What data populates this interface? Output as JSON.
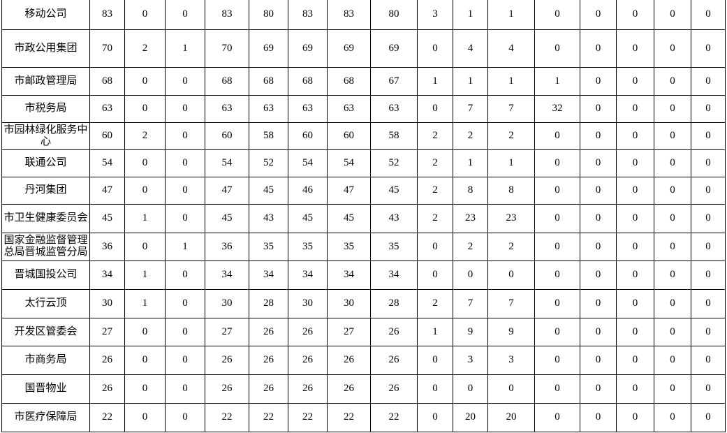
{
  "table": {
    "rows": [
      [
        "移动公司",
        83,
        0,
        0,
        83,
        80,
        83,
        83,
        80,
        3,
        1,
        1,
        0,
        0,
        0,
        0,
        0
      ],
      [
        "市政公用集团",
        70,
        2,
        1,
        70,
        69,
        69,
        69,
        69,
        0,
        4,
        4,
        0,
        0,
        0,
        0,
        0
      ],
      [
        "市邮政管理局",
        68,
        0,
        0,
        68,
        68,
        68,
        68,
        67,
        1,
        1,
        1,
        1,
        0,
        0,
        0,
        0
      ],
      [
        "市税务局",
        63,
        0,
        0,
        63,
        63,
        63,
        63,
        63,
        0,
        7,
        7,
        32,
        0,
        0,
        0,
        0
      ],
      [
        "市园林绿化服务中心",
        60,
        2,
        0,
        60,
        58,
        60,
        60,
        58,
        2,
        2,
        2,
        0,
        0,
        0,
        0,
        0
      ],
      [
        "联通公司",
        54,
        0,
        0,
        54,
        52,
        54,
        54,
        52,
        2,
        1,
        1,
        0,
        0,
        0,
        0,
        0
      ],
      [
        "丹河集团",
        47,
        0,
        0,
        47,
        45,
        46,
        47,
        45,
        2,
        8,
        8,
        0,
        0,
        0,
        0,
        0
      ],
      [
        "市卫生健康委员会",
        45,
        1,
        0,
        45,
        43,
        45,
        45,
        43,
        2,
        23,
        23,
        0,
        0,
        0,
        0,
        0
      ],
      [
        "国家金融监督管理总局晋城监管分局",
        36,
        0,
        1,
        36,
        35,
        35,
        35,
        35,
        0,
        2,
        2,
        0,
        0,
        0,
        0,
        0
      ],
      [
        "晋城国投公司",
        34,
        1,
        0,
        34,
        34,
        34,
        34,
        34,
        0,
        0,
        0,
        0,
        0,
        0,
        0,
        0
      ],
      [
        "太行云顶",
        30,
        1,
        0,
        30,
        28,
        30,
        30,
        28,
        2,
        7,
        7,
        0,
        0,
        0,
        0,
        0
      ],
      [
        "开发区管委会",
        27,
        0,
        0,
        27,
        26,
        26,
        27,
        26,
        1,
        9,
        9,
        0,
        0,
        0,
        0,
        0
      ],
      [
        "市商务局",
        26,
        0,
        0,
        26,
        26,
        26,
        26,
        26,
        0,
        3,
        3,
        0,
        0,
        0,
        0,
        0
      ],
      [
        "国晋物业",
        26,
        0,
        0,
        26,
        26,
        26,
        26,
        26,
        0,
        0,
        0,
        0,
        0,
        0,
        0,
        0
      ],
      [
        "市医疗保障局",
        22,
        0,
        0,
        22,
        22,
        22,
        22,
        22,
        0,
        20,
        20,
        0,
        0,
        0,
        0,
        0
      ]
    ]
  }
}
